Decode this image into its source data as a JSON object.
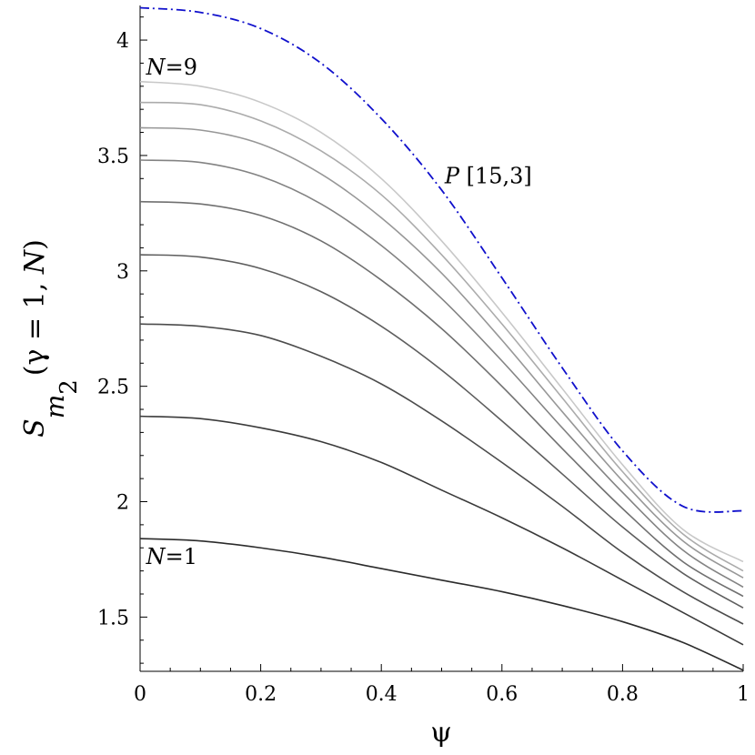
{
  "chart_data": {
    "type": "line",
    "xlabel": "ψ",
    "ylabel": {
      "main": "S",
      "sub": "m",
      "subsub": "2",
      "args_open": "(γ = 1, ",
      "args_var": "N",
      "args_close": ")"
    },
    "xlim": [
      0,
      1
    ],
    "ylim": [
      1.265,
      4.15
    ],
    "xticks": [
      0,
      0.2,
      0.4,
      0.6,
      0.8,
      1
    ],
    "xtick_labels": [
      "0",
      "0.2",
      "0.4",
      "0.6",
      "0.8",
      "1"
    ],
    "yticks": [
      1.5,
      2,
      2.5,
      3,
      3.5,
      4
    ],
    "ytick_labels": [
      "1.5",
      "2",
      "2.5",
      "3",
      "3.5",
      "4"
    ],
    "grid": false,
    "x": [
      0,
      0.1,
      0.2,
      0.3,
      0.4,
      0.5,
      0.6,
      0.7,
      0.8,
      0.9,
      1.0
    ],
    "series": [
      {
        "values": [
          1.84,
          1.83,
          1.8,
          1.76,
          1.71,
          1.66,
          1.61,
          1.55,
          1.48,
          1.39,
          1.27
        ],
        "color": "#2b2b2b"
      },
      {
        "values": [
          2.37,
          2.36,
          2.32,
          2.26,
          2.17,
          2.05,
          1.93,
          1.8,
          1.66,
          1.52,
          1.38
        ],
        "color": "#3a3a3a"
      },
      {
        "values": [
          2.77,
          2.76,
          2.72,
          2.63,
          2.51,
          2.35,
          2.17,
          1.98,
          1.78,
          1.61,
          1.47
        ],
        "color": "#4c4c4c"
      },
      {
        "values": [
          3.07,
          3.06,
          3.01,
          2.91,
          2.76,
          2.57,
          2.35,
          2.12,
          1.89,
          1.69,
          1.54
        ],
        "color": "#5e5e5e"
      },
      {
        "values": [
          3.3,
          3.29,
          3.24,
          3.13,
          2.96,
          2.75,
          2.5,
          2.23,
          1.97,
          1.74,
          1.59
        ],
        "color": "#707070"
      },
      {
        "values": [
          3.48,
          3.47,
          3.41,
          3.29,
          3.11,
          2.88,
          2.61,
          2.32,
          2.04,
          1.79,
          1.63
        ],
        "color": "#838383"
      },
      {
        "values": [
          3.62,
          3.61,
          3.55,
          3.42,
          3.23,
          2.99,
          2.7,
          2.39,
          2.09,
          1.83,
          1.67
        ],
        "color": "#979797"
      },
      {
        "values": [
          3.73,
          3.72,
          3.65,
          3.52,
          3.33,
          3.07,
          2.77,
          2.45,
          2.13,
          1.86,
          1.7
        ],
        "color": "#ababab"
      },
      {
        "values": [
          3.82,
          3.8,
          3.73,
          3.6,
          3.4,
          3.13,
          2.82,
          2.49,
          2.16,
          1.88,
          1.74
        ],
        "color": "#c8c8c8"
      },
      {
        "values": [
          4.14,
          4.12,
          4.05,
          3.9,
          3.66,
          3.35,
          2.97,
          2.58,
          2.22,
          1.98,
          1.96
        ],
        "color": "#1010cc",
        "style": "dash-dot"
      }
    ],
    "annotations": [
      {
        "var": "N",
        "text": "=9",
        "at_x": 0.01,
        "at_y": 3.85
      },
      {
        "var": "N",
        "text": "=1",
        "at_x": 0.01,
        "at_y": 1.73
      },
      {
        "var": "P",
        "text": " [15,3]",
        "at_x": 0.505,
        "at_y": 3.38
      }
    ]
  }
}
